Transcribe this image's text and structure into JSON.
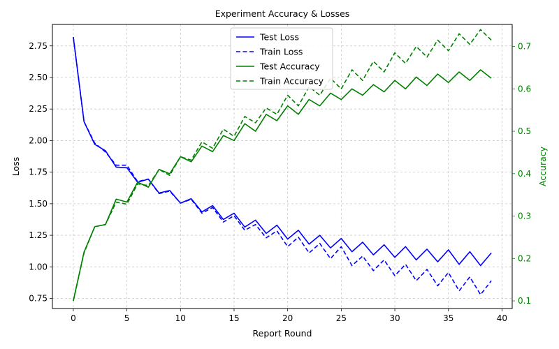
{
  "chart_data": {
    "type": "line",
    "title": "Experiment Accuracy & Losses",
    "xlabel": "Report Round",
    "ylabel_left": "Loss",
    "ylabel_right": "Accuracy",
    "xlim": [
      -1.95,
      40.95
    ],
    "ylim_left": [
      0.67,
      2.92
    ],
    "ylim_right": [
      0.082,
      0.752
    ],
    "x_ticks": [
      0,
      5,
      10,
      15,
      20,
      25,
      30,
      35,
      40
    ],
    "y_ticks_left": [
      0.75,
      1.0,
      1.25,
      1.5,
      1.75,
      2.0,
      2.25,
      2.5,
      2.75
    ],
    "y_ticks_right": [
      0.1,
      0.2,
      0.3,
      0.4,
      0.5,
      0.6,
      0.7
    ],
    "grid": true,
    "legend_position": "upper center",
    "colors": {
      "loss": "#0000ff",
      "accuracy": "#008000"
    },
    "x": [
      0,
      1,
      2,
      3,
      4,
      5,
      6,
      7,
      8,
      9,
      10,
      11,
      12,
      13,
      14,
      15,
      16,
      17,
      18,
      19,
      20,
      21,
      22,
      23,
      24,
      25,
      26,
      27,
      28,
      29,
      30,
      31,
      32,
      33,
      34,
      35,
      36,
      37,
      38,
      39
    ],
    "series": [
      {
        "name": "Test Loss",
        "axis": "left",
        "color": "#0000ff",
        "dash": "solid",
        "values": [
          2.82,
          2.15,
          1.97,
          1.92,
          1.79,
          1.785,
          1.67,
          1.695,
          1.585,
          1.605,
          1.505,
          1.54,
          1.435,
          1.485,
          1.375,
          1.425,
          1.315,
          1.37,
          1.265,
          1.33,
          1.22,
          1.29,
          1.18,
          1.25,
          1.15,
          1.225,
          1.12,
          1.195,
          1.095,
          1.175,
          1.075,
          1.16,
          1.055,
          1.14,
          1.04,
          1.135,
          1.02,
          1.12,
          1.01,
          1.11
        ]
      },
      {
        "name": "Train Loss",
        "axis": "left",
        "color": "#0000ff",
        "dash": "dashed",
        "values": [
          2.82,
          2.15,
          1.98,
          1.91,
          1.805,
          1.805,
          1.675,
          1.695,
          1.58,
          1.6,
          1.505,
          1.535,
          1.425,
          1.47,
          1.355,
          1.405,
          1.29,
          1.335,
          1.23,
          1.285,
          1.16,
          1.235,
          1.11,
          1.185,
          1.065,
          1.16,
          1.01,
          1.085,
          0.97,
          1.055,
          0.93,
          1.02,
          0.89,
          0.98,
          0.85,
          0.955,
          0.81,
          0.92,
          0.78,
          0.89
        ]
      },
      {
        "name": "Test Accuracy",
        "axis": "right",
        "color": "#008000",
        "dash": "solid",
        "values": [
          0.1,
          0.215,
          0.275,
          0.28,
          0.34,
          0.333,
          0.38,
          0.368,
          0.41,
          0.4,
          0.44,
          0.428,
          0.465,
          0.452,
          0.49,
          0.478,
          0.518,
          0.5,
          0.54,
          0.525,
          0.56,
          0.54,
          0.575,
          0.56,
          0.59,
          0.575,
          0.6,
          0.585,
          0.61,
          0.593,
          0.62,
          0.6,
          0.628,
          0.608,
          0.635,
          0.615,
          0.64,
          0.62,
          0.645,
          0.625
        ]
      },
      {
        "name": "Train Accuracy",
        "axis": "right",
        "color": "#008000",
        "dash": "dashed",
        "values": [
          0.1,
          0.213,
          0.275,
          0.28,
          0.333,
          0.328,
          0.376,
          0.372,
          0.41,
          0.396,
          0.44,
          0.432,
          0.475,
          0.46,
          0.505,
          0.488,
          0.535,
          0.52,
          0.555,
          0.54,
          0.585,
          0.56,
          0.605,
          0.585,
          0.625,
          0.6,
          0.645,
          0.62,
          0.665,
          0.64,
          0.685,
          0.66,
          0.7,
          0.675,
          0.715,
          0.69,
          0.73,
          0.705,
          0.74,
          0.715
        ]
      }
    ]
  }
}
